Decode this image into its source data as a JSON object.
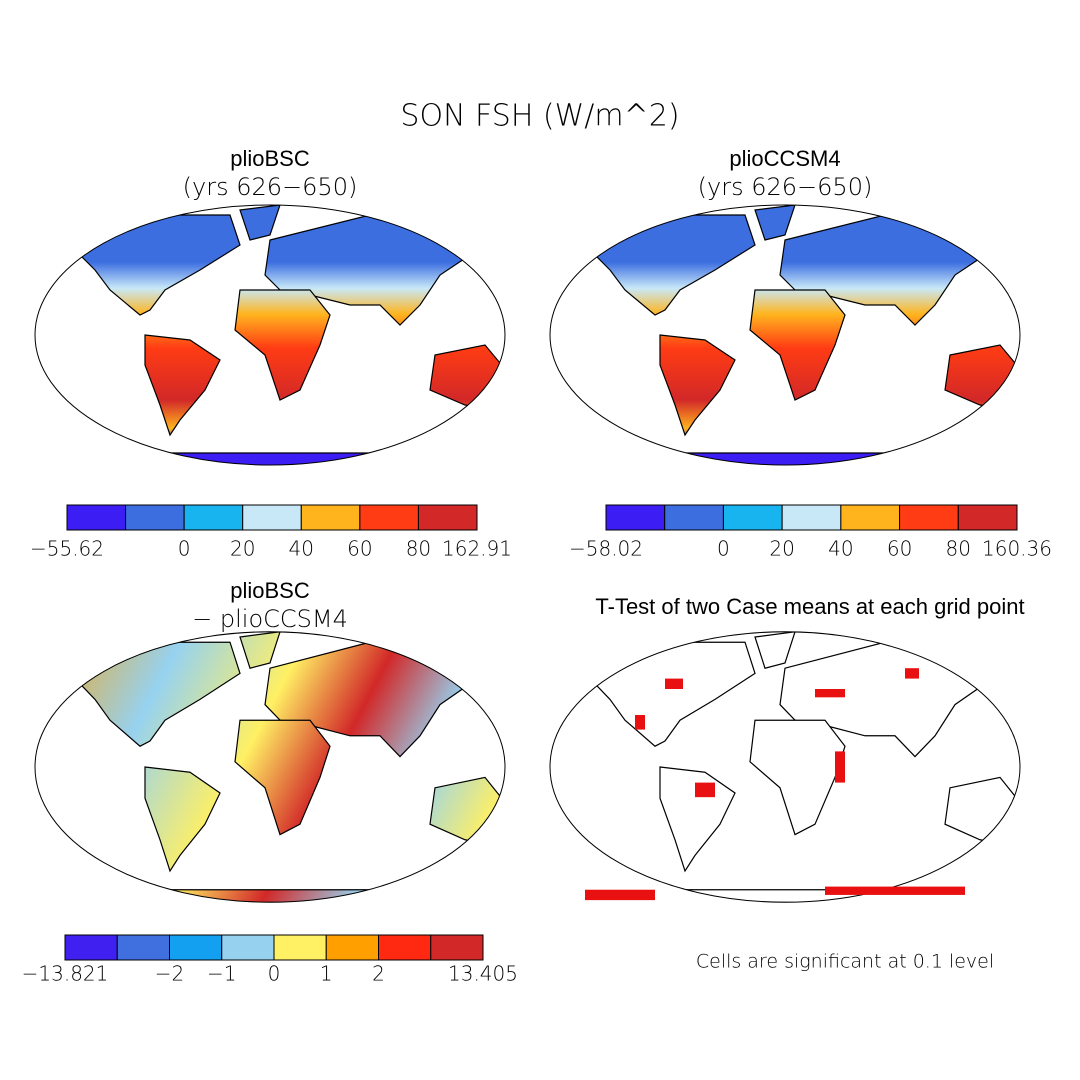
{
  "title": "SON FSH (W/m^2)",
  "panels": [
    {
      "title": "plioBSC",
      "subtitle": "(yrs 626−650)",
      "colorbar": {
        "colors": [
          "#3c1ef5",
          "#3c6ee0",
          "#18b4f0",
          "#c8e8f8",
          "#ffb41e",
          "#ff3c14",
          "#d22828"
        ],
        "labels": [
          "−55.62",
          null,
          "0",
          "20",
          "40",
          "60",
          "80",
          "162.91"
        ]
      }
    },
    {
      "title": "plioCCSM4",
      "subtitle": "(yrs 626−650)",
      "colorbar": {
        "colors": [
          "#3c1ef5",
          "#3c6ee0",
          "#18b4f0",
          "#c8e8f8",
          "#ffb41e",
          "#ff3c14",
          "#d22828"
        ],
        "labels": [
          "−58.02",
          null,
          "0",
          "20",
          "40",
          "60",
          "80",
          "160.36"
        ]
      }
    },
    {
      "title": "plioBSC",
      "subtitle": "− plioCCSM4",
      "colorbar": {
        "colors": [
          "#4020f0",
          "#4070e0",
          "#14a0f0",
          "#96d2f0",
          "#fff064",
          "#ffa000",
          "#ff2810",
          "#d22828"
        ],
        "labels": [
          "−13.821",
          null,
          "−2",
          "−1",
          "0",
          "1",
          "2",
          null,
          "13.405"
        ]
      }
    },
    {
      "title": "T-Test of two Case means at each grid point",
      "note": "Cells are significant at 0.1 level"
    }
  ]
}
